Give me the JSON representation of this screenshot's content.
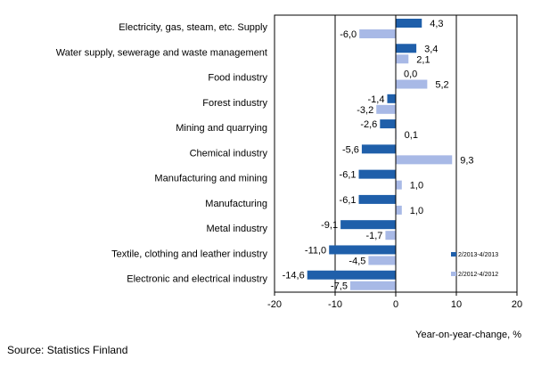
{
  "chart_data": {
    "type": "bar",
    "orientation": "horizontal",
    "categories": [
      "Electricity, gas, steam, etc. Supply",
      "Water supply, sewerage and waste management",
      "Food industry",
      "Forest industry",
      "Mining and quarrying",
      "Chemical industry",
      "Manufacturing and mining",
      "Manufacturing",
      "Metal industry",
      "Textile, clothing and leather industry",
      "Electronic and electrical industry"
    ],
    "series": [
      {
        "name": "2/2013-4/2013",
        "color": "#1f5faa",
        "values": [
          4.3,
          3.4,
          0.0,
          -1.4,
          -2.6,
          -5.6,
          -6.1,
          -6.1,
          -9.1,
          -11.0,
          -14.6
        ],
        "labels": [
          "4,3",
          "3,4",
          "0,0",
          "-1,4",
          "-2,6",
          "-5,6",
          "-6,1",
          "-6,1",
          "-9,1",
          "-11,0",
          "-14,6"
        ]
      },
      {
        "name": "2/2012-4/2012",
        "color": "#a8b9e6",
        "values": [
          -6.0,
          2.1,
          5.2,
          -3.2,
          0.1,
          9.3,
          1.0,
          1.0,
          -1.7,
          -4.5,
          -7.5
        ],
        "labels": [
          "-6,0",
          "2,1",
          "5,2",
          "-3,2",
          "0,1",
          "9,3",
          "1,0",
          "1,0",
          "-1,7",
          "-4,5",
          "-7,5"
        ]
      }
    ],
    "xlim": [
      -20,
      20
    ],
    "xticks": [
      "-20",
      "-10",
      "0",
      "10",
      "20"
    ],
    "xlabel": "Year-on-year-change, %",
    "gridlines_at": [
      -10,
      10
    ],
    "legend_position": "right"
  },
  "source": "Source: Statistics Finland"
}
